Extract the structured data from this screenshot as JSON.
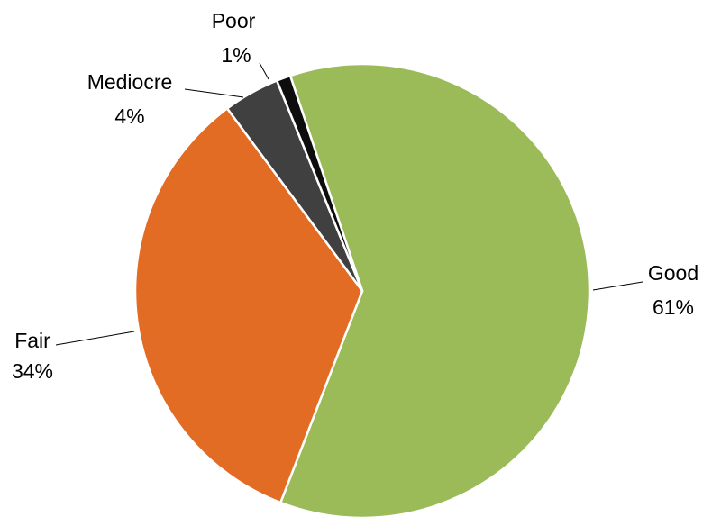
{
  "chart_data": {
    "type": "pie",
    "start_angle_deg": 341.5,
    "direction": "clockwise",
    "legend": "none",
    "slices": [
      {
        "label": "Good",
        "value": 61,
        "value_label": "61%",
        "color": "#9BBB59"
      },
      {
        "label": "Fair",
        "value": 34,
        "value_label": "34%",
        "color": "#E36C25"
      },
      {
        "label": "Mediocre",
        "value": 4,
        "value_label": "4%",
        "color": "#404040"
      },
      {
        "label": "Poor",
        "value": 1,
        "value_label": "1%",
        "color": "#0D0D0D"
      }
    ]
  }
}
